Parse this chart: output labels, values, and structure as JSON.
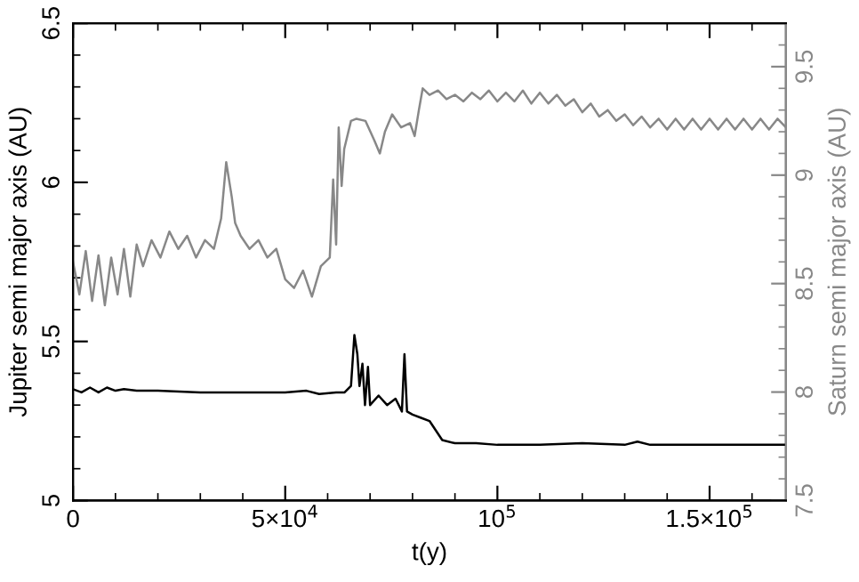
{
  "chart_data": {
    "type": "line",
    "xlabel": "t(y)",
    "ylabel": "Jupiter semi major axis (AU)",
    "y2label": "Saturn semi major axis (AU)",
    "xlim": [
      0,
      168000
    ],
    "ylim": [
      5,
      6.5
    ],
    "y2lim": [
      7.5,
      9.7
    ],
    "xticks": [
      0,
      {
        "value": 10000,
        "label": null
      },
      {
        "value": 20000,
        "label": null
      },
      {
        "value": 30000,
        "label": null
      },
      {
        "value": 40000,
        "label": null
      },
      {
        "value": 50000,
        "label": "5×10$^{4}$"
      },
      {
        "value": 60000,
        "label": null
      },
      {
        "value": 70000,
        "label": null
      },
      {
        "value": 80000,
        "label": null
      },
      {
        "value": 90000,
        "label": null
      },
      {
        "value": 100000,
        "label": "10$^{5}$"
      },
      {
        "value": 110000,
        "label": null
      },
      {
        "value": 120000,
        "label": null
      },
      {
        "value": 130000,
        "label": null
      },
      {
        "value": 140000,
        "label": null
      },
      {
        "value": 150000,
        "label": "1.5×10$^{5}$"
      },
      {
        "value": 160000,
        "label": null
      }
    ],
    "yticks": [
      5,
      {
        "value": 5.1,
        "label": null
      },
      {
        "value": 5.2,
        "label": null
      },
      {
        "value": 5.3,
        "label": null
      },
      {
        "value": 5.4,
        "label": null
      },
      5.5,
      {
        "value": 5.6,
        "label": null
      },
      {
        "value": 5.7,
        "label": null
      },
      {
        "value": 5.8,
        "label": null
      },
      {
        "value": 5.9,
        "label": null
      },
      6,
      {
        "value": 6.1,
        "label": null
      },
      {
        "value": 6.2,
        "label": null
      },
      {
        "value": 6.3,
        "label": null
      },
      {
        "value": 6.4,
        "label": null
      },
      6.5
    ],
    "y2ticks": [
      7.5,
      {
        "value": 7.6,
        "label": null
      },
      {
        "value": 7.7,
        "label": null
      },
      {
        "value": 7.8,
        "label": null
      },
      {
        "value": 7.9,
        "label": null
      },
      8,
      {
        "value": 8.1,
        "label": null
      },
      {
        "value": 8.2,
        "label": null
      },
      {
        "value": 8.3,
        "label": null
      },
      {
        "value": 8.4,
        "label": null
      },
      8.5,
      {
        "value": 8.6,
        "label": null
      },
      {
        "value": 8.7,
        "label": null
      },
      {
        "value": 8.8,
        "label": null
      },
      {
        "value": 8.9,
        "label": null
      },
      9,
      {
        "value": 9.1,
        "label": null
      },
      {
        "value": 9.2,
        "label": null
      },
      {
        "value": 9.3,
        "label": null
      },
      {
        "value": 9.4,
        "label": null
      },
      9.5,
      {
        "value": 9.6,
        "label": null
      }
    ],
    "grid": false,
    "marker": "none",
    "line_style": "solid",
    "series": [
      {
        "color": "#000000",
        "x": [
          0,
          2000,
          4000,
          6000,
          8000,
          10000,
          12000,
          15000,
          20000,
          30000,
          40000,
          50000,
          55000,
          58000,
          62000,
          64000,
          65500,
          66300,
          67000,
          67500,
          68200,
          68800,
          69500,
          70000,
          72000,
          74000,
          76000,
          77500,
          78100,
          78700,
          80000,
          82000,
          84000,
          85500,
          87000,
          90000,
          95000,
          100000,
          110000,
          120000,
          130000,
          133000,
          136000,
          150000,
          168000
        ],
        "values": [
          5.35,
          5.34,
          5.355,
          5.34,
          5.355,
          5.345,
          5.35,
          5.345,
          5.345,
          5.34,
          5.34,
          5.34,
          5.345,
          5.335,
          5.34,
          5.34,
          5.36,
          5.52,
          5.46,
          5.36,
          5.43,
          5.3,
          5.42,
          5.3,
          5.33,
          5.3,
          5.32,
          5.28,
          5.46,
          5.28,
          5.27,
          5.26,
          5.25,
          5.22,
          5.19,
          5.18,
          5.18,
          5.175,
          5.175,
          5.18,
          5.175,
          5.185,
          5.175,
          5.175,
          5.175
        ]
      },
      {
        "color": "#888888",
        "axis": "y2",
        "x": [
          0,
          1500,
          3000,
          4500,
          6000,
          7500,
          9000,
          10500,
          12000,
          13500,
          15000,
          16500,
          18500,
          20600,
          22700,
          24800,
          26900,
          29000,
          31100,
          33200,
          34900,
          36100,
          37400,
          38200,
          39500,
          41600,
          43700,
          45800,
          47900,
          50000,
          52100,
          54200,
          56300,
          58400,
          60500,
          61300,
          62000,
          62600,
          63300,
          63900,
          65500,
          66800,
          68900,
          71000,
          72300,
          73500,
          75200,
          77300,
          79400,
          80500,
          81500,
          82400,
          84000,
          86000,
          88000,
          90000,
          92000,
          94000,
          96000,
          98000,
          100000,
          102000,
          104000,
          106000,
          108000,
          110000,
          112000,
          114000,
          116000,
          118000,
          120000,
          122000,
          124000,
          126000,
          128000,
          130000,
          132000,
          134000,
          136000,
          138000,
          140000,
          142000,
          144000,
          146000,
          148000,
          150000,
          152000,
          154000,
          156000,
          158000,
          160000,
          162000,
          164000,
          166000,
          168000
        ],
        "values": [
          8.6,
          8.45,
          8.65,
          8.42,
          8.63,
          8.4,
          8.62,
          8.45,
          8.66,
          8.44,
          8.68,
          8.58,
          8.7,
          8.62,
          8.74,
          8.66,
          8.72,
          8.62,
          8.7,
          8.66,
          8.8,
          9.06,
          8.9,
          8.78,
          8.72,
          8.66,
          8.7,
          8.62,
          8.66,
          8.52,
          8.48,
          8.56,
          8.44,
          8.58,
          8.62,
          8.98,
          8.68,
          9.22,
          8.95,
          9.12,
          9.25,
          9.26,
          9.25,
          9.16,
          9.1,
          9.2,
          9.28,
          9.22,
          9.24,
          9.18,
          9.3,
          9.4,
          9.37,
          9.39,
          9.35,
          9.37,
          9.34,
          9.38,
          9.35,
          9.39,
          9.34,
          9.38,
          9.34,
          9.39,
          9.33,
          9.38,
          9.33,
          9.37,
          9.32,
          9.35,
          9.29,
          9.33,
          9.27,
          9.3,
          9.25,
          9.28,
          9.23,
          9.27,
          9.22,
          9.26,
          9.21,
          9.26,
          9.21,
          9.26,
          9.21,
          9.26,
          9.21,
          9.26,
          9.21,
          9.26,
          9.21,
          9.26,
          9.21,
          9.26,
          9.22
        ]
      }
    ]
  }
}
